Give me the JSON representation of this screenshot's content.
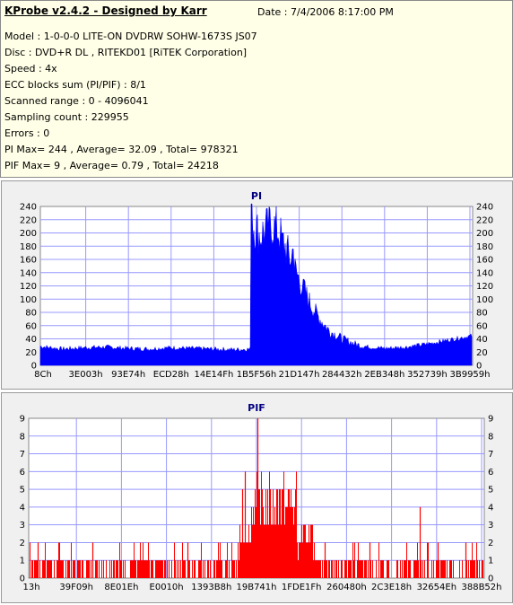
{
  "info": {
    "title": "KProbe v2.4.2 - Designed by Karr",
    "date": "Date : 7/4/2006 8:17:00 PM",
    "lines": [
      "Model : 1-0-0-0 LITE-ON DVDRW SOHW-1673S JS07",
      "Disc : DVD+R DL , RITEKD01 [RiTEK Corporation]",
      "Speed : 4x",
      "ECC blocks sum (PI/PIF) : 8/1",
      "Scanned range : 0 - 4096041",
      "Sampling count : 229955",
      "Errors : 0",
      "PI Max= 244 , Average= 32.09 , Total= 978321",
      "PIF Max= 9 , Average= 0.79 , Total= 24218"
    ]
  },
  "colors": {
    "pi": "#0000ff",
    "pif": "#ff0000",
    "title": "#000080",
    "grid": "#9999ff"
  },
  "chart_data": [
    {
      "type": "area",
      "title": "PI",
      "ylim": [
        0,
        240
      ],
      "yticks": [
        0,
        20,
        40,
        60,
        80,
        100,
        120,
        140,
        160,
        180,
        200,
        220,
        240
      ],
      "xticks": [
        "8Ch",
        "3E003h",
        "93E74h",
        "ECD28h",
        "14E14Fh",
        "1B5F56h",
        "21D147h",
        "284432h",
        "2EB348h",
        "352739h",
        "3B9959h"
      ],
      "grid": true,
      "profile": [
        {
          "x": 0.0,
          "y": 28
        },
        {
          "x": 0.05,
          "y": 24
        },
        {
          "x": 0.1,
          "y": 26
        },
        {
          "x": 0.15,
          "y": 27
        },
        {
          "x": 0.2,
          "y": 25
        },
        {
          "x": 0.25,
          "y": 24
        },
        {
          "x": 0.3,
          "y": 26
        },
        {
          "x": 0.35,
          "y": 25
        },
        {
          "x": 0.4,
          "y": 24
        },
        {
          "x": 0.45,
          "y": 23
        },
        {
          "x": 0.488,
          "y": 24
        },
        {
          "x": 0.492,
          "y": 215
        },
        {
          "x": 0.51,
          "y": 195
        },
        {
          "x": 0.53,
          "y": 215
        },
        {
          "x": 0.55,
          "y": 205
        },
        {
          "x": 0.57,
          "y": 175
        },
        {
          "x": 0.59,
          "y": 145
        },
        {
          "x": 0.61,
          "y": 115
        },
        {
          "x": 0.63,
          "y": 88
        },
        {
          "x": 0.65,
          "y": 68
        },
        {
          "x": 0.67,
          "y": 52
        },
        {
          "x": 0.7,
          "y": 40
        },
        {
          "x": 0.73,
          "y": 32
        },
        {
          "x": 0.76,
          "y": 27
        },
        {
          "x": 0.8,
          "y": 25
        },
        {
          "x": 0.85,
          "y": 27
        },
        {
          "x": 0.9,
          "y": 32
        },
        {
          "x": 0.95,
          "y": 38
        },
        {
          "x": 1.0,
          "y": 44
        }
      ],
      "peaks": [
        {
          "x": 0.49,
          "y": 244
        },
        {
          "x": 0.524,
          "y": 237
        },
        {
          "x": 0.563,
          "y": 200
        },
        {
          "x": 0.585,
          "y": 176
        },
        {
          "x": 0.61,
          "y": 130
        }
      ]
    },
    {
      "type": "bar",
      "title": "PIF",
      "ylim": [
        0,
        9
      ],
      "yticks": [
        0,
        1,
        2,
        3,
        4,
        5,
        6,
        7,
        8,
        9
      ],
      "xticks": [
        "13h",
        "39F09h",
        "8E01Eh",
        "E0010h",
        "1393B8h",
        "19B741h",
        "1FDE1Fh",
        "260480h",
        "2C3E18h",
        "32654Eh",
        "388B52h"
      ],
      "grid": true,
      "levels": [
        {
          "from": 0.0,
          "to": 0.46,
          "base": 1,
          "spikes": [
            {
              "x": 0.02,
              "y": 2
            },
            {
              "x": 0.14,
              "y": 2
            },
            {
              "x": 0.35,
              "y": 2
            }
          ]
        },
        {
          "from": 0.46,
          "to": 0.49,
          "base": 2,
          "spikes": [
            {
              "x": 0.47,
              "y": 5
            },
            {
              "x": 0.475,
              "y": 6
            }
          ]
        },
        {
          "from": 0.49,
          "to": 0.59,
          "base": 4,
          "spikes": [
            {
              "x": 0.502,
              "y": 9
            },
            {
              "x": 0.53,
              "y": 5
            },
            {
              "x": 0.55,
              "y": 5
            },
            {
              "x": 0.57,
              "y": 5
            }
          ]
        },
        {
          "from": 0.59,
          "to": 0.63,
          "base": 2,
          "spikes": [
            {
              "x": 0.6,
              "y": 3
            }
          ]
        },
        {
          "from": 0.63,
          "to": 1.0,
          "base": 1,
          "spikes": [
            {
              "x": 0.65,
              "y": 2
            },
            {
              "x": 0.75,
              "y": 2
            },
            {
              "x": 0.86,
              "y": 4
            },
            {
              "x": 0.9,
              "y": 2
            },
            {
              "x": 0.96,
              "y": 2
            }
          ]
        }
      ]
    }
  ]
}
